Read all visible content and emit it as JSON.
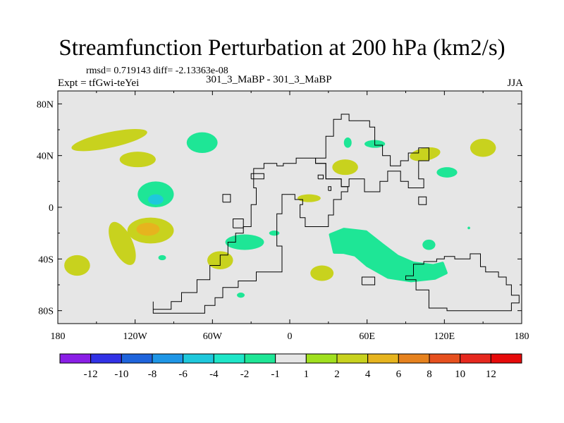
{
  "chart_data": {
    "type": "heatmap",
    "title": "Streamfunction Perturbation at 200 hPa (km2/s)",
    "stats": "rmsd= 0.719143 diff= -2.13363e-08",
    "experiment": "Expt = tfGwi-teYei",
    "cases": "301_3_MaBP - 301_3_MaBP",
    "season": "JJA",
    "xlim": [
      -180,
      180
    ],
    "ylim": [
      -90,
      90
    ],
    "x_ticks": [
      {
        "value": -180,
        "label": "180"
      },
      {
        "value": -120,
        "label": "120W"
      },
      {
        "value": -60,
        "label": "60W"
      },
      {
        "value": 0,
        "label": "0"
      },
      {
        "value": 60,
        "label": "60E"
      },
      {
        "value": 120,
        "label": "120E"
      },
      {
        "value": 180,
        "label": "180"
      }
    ],
    "y_ticks": [
      {
        "value": 80,
        "label": "80N"
      },
      {
        "value": 40,
        "label": "40N"
      },
      {
        "value": 0,
        "label": "0"
      },
      {
        "value": -40,
        "label": "40S"
      },
      {
        "value": -80,
        "label": "80S"
      }
    ],
    "colorbar": {
      "labels": [
        "-12",
        "-10",
        "-8",
        "-6",
        "-4",
        "-2",
        "-1",
        "1",
        "2",
        "4",
        "6",
        "8",
        "10",
        "12"
      ],
      "colors": [
        "#8a1ee6",
        "#3232e6",
        "#1e64dc",
        "#1e96e6",
        "#1ec8dc",
        "#1ee6c8",
        "#1ee696",
        "#e6e6e6",
        "#a0e01e",
        "#c8d21e",
        "#e6b41e",
        "#e6821e",
        "#e6501e",
        "#e6281e",
        "#e60a0a"
      ]
    },
    "regions": [
      {
        "lon": -140,
        "lat": 52,
        "rlon": 30,
        "rlat": 6,
        "rot": -12,
        "level": "2"
      },
      {
        "lon": -118,
        "lat": 37,
        "rlon": 14,
        "rlat": 6,
        "rot": 0,
        "level": "2"
      },
      {
        "lon": -104,
        "lat": 10,
        "rlon": 14,
        "rlat": 10,
        "rot": 0,
        "level": "-1"
      },
      {
        "lon": -104,
        "lat": 6,
        "rlon": 6,
        "rlat": 4,
        "rot": 0,
        "level": "-4"
      },
      {
        "lon": -108,
        "lat": -18,
        "rlon": 18,
        "rlat": 10,
        "rot": 0,
        "level": "2"
      },
      {
        "lon": -110,
        "lat": -17,
        "rlon": 9,
        "rlat": 5,
        "rot": 0,
        "level": "4"
      },
      {
        "lon": -130,
        "lat": -28,
        "rlon": 8,
        "rlat": 18,
        "rot": -25,
        "level": "2"
      },
      {
        "lon": -165,
        "lat": -45,
        "rlon": 10,
        "rlat": 8,
        "rot": 0,
        "level": "2"
      },
      {
        "lon": -99,
        "lat": -39,
        "rlon": 3,
        "rlat": 2,
        "rot": 0,
        "level": "-1"
      },
      {
        "lon": -68,
        "lat": 50,
        "rlon": 12,
        "rlat": 8,
        "rot": 0,
        "level": "-1"
      },
      {
        "lon": -54,
        "lat": -41,
        "rlon": 10,
        "rlat": 7,
        "rot": 0,
        "level": "2"
      },
      {
        "lon": -35,
        "lat": -27,
        "rlon": 15,
        "rlat": 6,
        "rot": 0,
        "level": "-1"
      },
      {
        "lon": -38,
        "lat": -68,
        "rlon": 3,
        "rlat": 2,
        "rot": 0,
        "level": "-1"
      },
      {
        "lon": -12,
        "lat": -20,
        "rlon": 4,
        "rlat": 2,
        "rot": 0,
        "level": "-1"
      },
      {
        "lon": 15,
        "lat": 7,
        "rlon": 9,
        "rlat": 3,
        "rot": 0,
        "level": "2"
      },
      {
        "lon": 25,
        "lat": -51,
        "rlon": 9,
        "rlat": 6,
        "rot": 0,
        "level": "2"
      },
      {
        "lon": 45,
        "lat": 50,
        "rlon": 3,
        "rlat": 4,
        "rot": 0,
        "level": "-1"
      },
      {
        "lon": 43,
        "lat": 31,
        "rlon": 10,
        "rlat": 6,
        "rot": 0,
        "level": "2"
      },
      {
        "lon": 66,
        "lat": 49,
        "rlon": 8,
        "rlat": 3,
        "rot": 0,
        "level": "-1"
      },
      {
        "lon": 105,
        "lat": 41,
        "rlon": 12,
        "rlat": 5,
        "rot": -10,
        "level": "2"
      },
      {
        "lon": 122,
        "lat": 27,
        "rlon": 8,
        "rlat": 4,
        "rot": 0,
        "level": "-1"
      },
      {
        "lon": 150,
        "lat": 46,
        "rlon": 10,
        "rlat": 7,
        "rot": 0,
        "level": "2"
      },
      {
        "lon": 108,
        "lat": -29,
        "rlon": 5,
        "rlat": 4,
        "rot": 0,
        "level": "-1"
      },
      {
        "lon": 139,
        "lat": -16,
        "rlon": 1,
        "rlat": 1,
        "rot": 0,
        "level": "-1"
      }
    ],
    "streak": {
      "points": [
        [
          33,
          -28
        ],
        [
          42,
          -26
        ],
        [
          55,
          -28
        ],
        [
          66,
          -37
        ],
        [
          80,
          -46
        ],
        [
          95,
          -50
        ],
        [
          112,
          -50
        ],
        [
          120,
          -47
        ]
      ],
      "half_width": [
        7,
        9,
        10,
        10,
        9,
        7,
        5,
        4
      ],
      "level": "-1"
    },
    "coastline_outline_lonlat": [
      [
        -106,
        -73
      ],
      [
        -106,
        -79
      ],
      [
        -92,
        -79
      ],
      [
        -92,
        -73
      ],
      [
        -84,
        -73
      ],
      [
        -84,
        -66
      ],
      [
        -72,
        -66
      ],
      [
        -72,
        -56
      ],
      [
        -62,
        -56
      ],
      [
        -62,
        -45
      ],
      [
        -54,
        -45
      ],
      [
        -54,
        -37
      ],
      [
        -48,
        -37
      ],
      [
        -48,
        -27
      ],
      [
        -42,
        -27
      ],
      [
        -42,
        -20
      ],
      [
        -36,
        -20
      ],
      [
        -36,
        -15
      ],
      [
        -30,
        -15
      ],
      [
        -30,
        2
      ],
      [
        -26,
        2
      ],
      [
        -26,
        15
      ],
      [
        -28,
        15
      ],
      [
        -28,
        30
      ],
      [
        -20,
        30
      ],
      [
        -20,
        34
      ],
      [
        -10,
        34
      ],
      [
        -10,
        32
      ],
      [
        -5,
        32
      ],
      [
        -5,
        34
      ],
      [
        5,
        34
      ],
      [
        5,
        38
      ],
      [
        20,
        38
      ],
      [
        20,
        34
      ],
      [
        28,
        34
      ],
      [
        28,
        22
      ],
      [
        40,
        22
      ],
      [
        40,
        16
      ],
      [
        45,
        16
      ],
      [
        45,
        12
      ],
      [
        40,
        12
      ],
      [
        40,
        6
      ],
      [
        34,
        6
      ],
      [
        34,
        -6
      ],
      [
        30,
        -6
      ],
      [
        30,
        -15
      ],
      [
        12,
        -15
      ],
      [
        12,
        -8
      ],
      [
        8,
        -8
      ],
      [
        8,
        2
      ],
      [
        10,
        2
      ],
      [
        10,
        6
      ],
      [
        4,
        6
      ],
      [
        4,
        10
      ],
      [
        0,
        10
      ],
      [
        -6,
        10
      ],
      [
        -6,
        -5
      ],
      [
        -10,
        -5
      ],
      [
        -10,
        -30
      ],
      [
        -6,
        -30
      ],
      [
        -6,
        -50
      ],
      [
        -26,
        -50
      ],
      [
        -26,
        -57
      ],
      [
        -40,
        -57
      ],
      [
        -40,
        -62
      ],
      [
        -52,
        -62
      ],
      [
        -52,
        -70
      ],
      [
        -58,
        -70
      ],
      [
        -58,
        -76
      ],
      [
        -66,
        -76
      ],
      [
        -66,
        -82
      ],
      [
        -106,
        -82
      ],
      [
        -106,
        -73
      ]
    ],
    "eurasia_outline_lonlat": [
      [
        20,
        38
      ],
      [
        28,
        38
      ],
      [
        28,
        55
      ],
      [
        34,
        55
      ],
      [
        34,
        68
      ],
      [
        40,
        68
      ],
      [
        40,
        72
      ],
      [
        46,
        72
      ],
      [
        46,
        67
      ],
      [
        62,
        67
      ],
      [
        62,
        62
      ],
      [
        66,
        62
      ],
      [
        66,
        48
      ],
      [
        72,
        48
      ],
      [
        72,
        40
      ],
      [
        78,
        40
      ],
      [
        78,
        32
      ],
      [
        86,
        32
      ],
      [
        86,
        36
      ],
      [
        92,
        36
      ],
      [
        92,
        42
      ],
      [
        100,
        42
      ],
      [
        100,
        46
      ],
      [
        108,
        46
      ],
      [
        108,
        36
      ],
      [
        100,
        36
      ],
      [
        100,
        22
      ],
      [
        104,
        22
      ],
      [
        104,
        15
      ],
      [
        92,
        15
      ],
      [
        92,
        20
      ],
      [
        86,
        20
      ],
      [
        86,
        28
      ],
      [
        76,
        28
      ],
      [
        76,
        20
      ],
      [
        70,
        20
      ],
      [
        70,
        12
      ],
      [
        58,
        12
      ],
      [
        58,
        22
      ],
      [
        46,
        22
      ],
      [
        46,
        16
      ],
      [
        40,
        16
      ],
      [
        40,
        22
      ],
      [
        28,
        22
      ],
      [
        28,
        34
      ],
      [
        20,
        34
      ],
      [
        20,
        38
      ]
    ],
    "australia_outline_lonlat": [
      [
        96,
        -50
      ],
      [
        96,
        -44
      ],
      [
        104,
        -44
      ],
      [
        104,
        -42
      ],
      [
        114,
        -42
      ],
      [
        114,
        -40
      ],
      [
        120,
        -40
      ],
      [
        120,
        -38
      ],
      [
        128,
        -38
      ],
      [
        128,
        -40
      ],
      [
        140,
        -40
      ],
      [
        140,
        -36
      ],
      [
        148,
        -36
      ],
      [
        148,
        -46
      ],
      [
        152,
        -46
      ],
      [
        152,
        -50
      ],
      [
        162,
        -50
      ],
      [
        162,
        -54
      ],
      [
        168,
        -54
      ],
      [
        168,
        -60
      ],
      [
        172,
        -60
      ],
      [
        172,
        -68
      ],
      [
        178,
        -68
      ],
      [
        178,
        -74
      ],
      [
        172,
        -74
      ],
      [
        172,
        -80
      ],
      [
        122,
        -80
      ],
      [
        122,
        -78
      ],
      [
        108,
        -78
      ],
      [
        108,
        -64
      ],
      [
        98,
        -64
      ],
      [
        98,
        -56
      ],
      [
        90,
        -56
      ],
      [
        90,
        -53
      ],
      [
        96,
        -53
      ],
      [
        96,
        -50
      ]
    ],
    "islands_outline_lonlat": [
      [
        [
          -44,
          -16
        ],
        [
          -36,
          -16
        ],
        [
          -36,
          -9
        ],
        [
          -44,
          -9
        ],
        [
          -44,
          -16
        ]
      ],
      [
        [
          -30,
          22
        ],
        [
          -20,
          22
        ],
        [
          -20,
          26
        ],
        [
          -30,
          26
        ],
        [
          -30,
          22
        ]
      ],
      [
        [
          -52,
          4
        ],
        [
          -46,
          4
        ],
        [
          -46,
          10
        ],
        [
          -52,
          10
        ],
        [
          -52,
          4
        ]
      ],
      [
        [
          100,
          2
        ],
        [
          106,
          2
        ],
        [
          106,
          8
        ],
        [
          100,
          8
        ],
        [
          100,
          2
        ]
      ],
      [
        [
          56,
          -60
        ],
        [
          66,
          -60
        ],
        [
          66,
          -54
        ],
        [
          56,
          -54
        ],
        [
          56,
          -60
        ]
      ],
      [
        [
          22,
          22
        ],
        [
          26,
          22
        ],
        [
          26,
          25
        ],
        [
          22,
          25
        ],
        [
          22,
          22
        ]
      ],
      [
        [
          30,
          13
        ],
        [
          32,
          13
        ],
        [
          32,
          16
        ],
        [
          30,
          16
        ],
        [
          30,
          13
        ]
      ]
    ]
  }
}
